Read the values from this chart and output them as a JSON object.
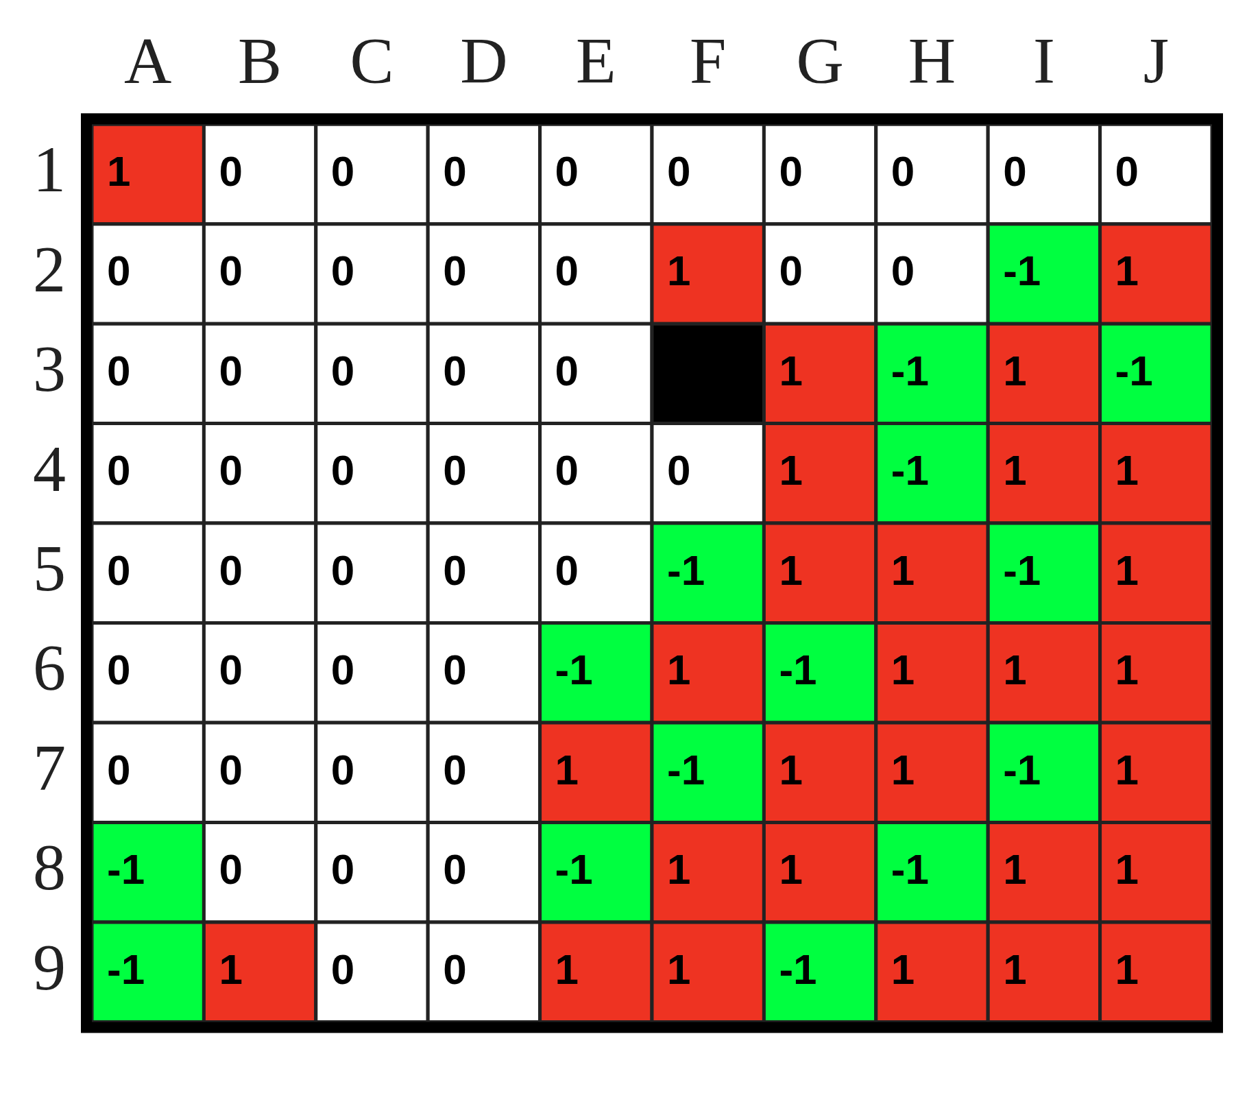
{
  "chart_data": {
    "type": "heatmap",
    "categories": [
      "A",
      "B",
      "C",
      "D",
      "E",
      "F",
      "G",
      "H",
      "I",
      "J"
    ],
    "y_categories": [
      "1",
      "2",
      "3",
      "4",
      "5",
      "6",
      "7",
      "8",
      "9"
    ],
    "cells": [
      [
        1,
        0,
        0,
        0,
        0,
        0,
        0,
        0,
        0,
        0
      ],
      [
        0,
        0,
        0,
        0,
        0,
        1,
        0,
        0,
        -1,
        1
      ],
      [
        0,
        0,
        0,
        0,
        0,
        null,
        1,
        -1,
        1,
        -1
      ],
      [
        0,
        0,
        0,
        0,
        0,
        0,
        1,
        -1,
        1,
        1
      ],
      [
        0,
        0,
        0,
        0,
        0,
        -1,
        1,
        1,
        -1,
        1
      ],
      [
        0,
        0,
        0,
        0,
        -1,
        1,
        -1,
        1,
        1,
        1
      ],
      [
        0,
        0,
        0,
        0,
        1,
        -1,
        1,
        1,
        -1,
        1
      ],
      [
        -1,
        0,
        0,
        0,
        -1,
        1,
        1,
        -1,
        1,
        1
      ],
      [
        -1,
        1,
        0,
        0,
        1,
        1,
        -1,
        1,
        1,
        1
      ]
    ],
    "data_labels": true
  }
}
